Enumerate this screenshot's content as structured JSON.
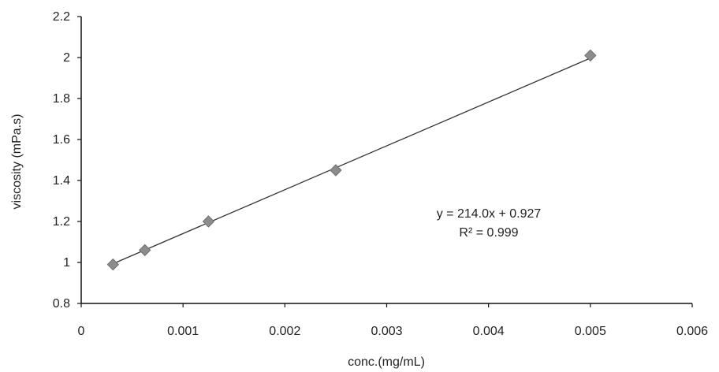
{
  "chart_data": {
    "type": "scatter",
    "xlabel": "conc.(mg/mL)",
    "ylabel": "viscosity (mPa.s)",
    "xlim": [
      0,
      0.006
    ],
    "ylim": [
      0.8,
      2.2
    ],
    "x_ticks": [
      "0",
      "0.001",
      "0.002",
      "0.003",
      "0.004",
      "0.005",
      "0.006"
    ],
    "x_tick_values": [
      0,
      0.001,
      0.002,
      0.003,
      0.004,
      0.005,
      0.006
    ],
    "y_ticks": [
      "0.8",
      "1",
      "1.2",
      "1.4",
      "1.6",
      "1.8",
      "2",
      "2.2"
    ],
    "y_tick_values": [
      0.8,
      1.0,
      1.2,
      1.4,
      1.6,
      1.8,
      2.0,
      2.2
    ],
    "series": [
      {
        "x": [
          0.0003125,
          0.000625,
          0.00125,
          0.0025,
          0.005
        ],
        "y": [
          0.99,
          1.06,
          1.2,
          1.45,
          2.01
        ],
        "marker": "diamond",
        "color": "#8c8c8c"
      }
    ],
    "trendline": {
      "type": "linear",
      "slope": 214.0,
      "intercept": 0.927,
      "x_range": [
        0.0003125,
        0.005
      ],
      "equation": "y = 214.0x + 0.927",
      "r_squared": "R² = 0.999",
      "color": "#333333"
    },
    "grid": false,
    "legend": "none"
  }
}
